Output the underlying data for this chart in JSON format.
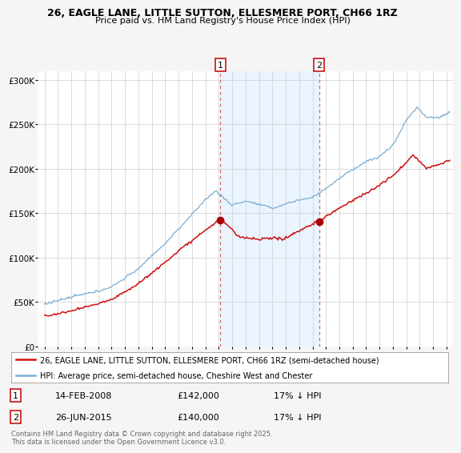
{
  "title1": "26, EAGLE LANE, LITTLE SUTTON, ELLESMERE PORT, CH66 1RZ",
  "title2": "Price paid vs. HM Land Registry's House Price Index (HPI)",
  "background_color": "#f5f5f5",
  "plot_bg_color": "#ffffff",
  "grid_color": "#cccccc",
  "shade_color": "#ddeeff",
  "hpi_color": "#7aadd4",
  "price_color": "#cc1111",
  "marker_color": "#aa0000",
  "vline_color": "#dd6666",
  "transaction1": {
    "date": "14-FEB-2008",
    "price": 142000,
    "hpi_pct": "17% ↓ HPI",
    "label": "1",
    "year": 2008.12
  },
  "transaction2": {
    "date": "26-JUN-2015",
    "price": 140000,
    "hpi_pct": "17% ↓ HPI",
    "label": "2",
    "year": 2015.49
  },
  "legend_line1": "26, EAGLE LANE, LITTLE SUTTON, ELLESMERE PORT, CH66 1RZ (semi-detached house)",
  "legend_line2": "HPI: Average price, semi-detached house, Cheshire West and Chester",
  "footer": "Contains HM Land Registry data © Crown copyright and database right 2025.\nThis data is licensed under the Open Government Licence v3.0.",
  "yticks": [
    0,
    50000,
    100000,
    150000,
    200000,
    250000,
    300000
  ],
  "ytick_labels": [
    "£0",
    "£50K",
    "£100K",
    "£150K",
    "£200K",
    "£250K",
    "£300K"
  ],
  "ylim": [
    0,
    310000
  ],
  "xlim": [
    1994.5,
    2025.5
  ]
}
